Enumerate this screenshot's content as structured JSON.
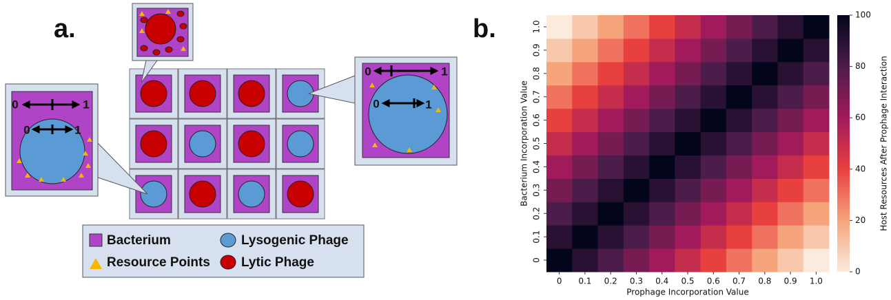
{
  "diagram": {
    "panel_a_label": "a.",
    "panel_b_label": "b.",
    "legend": [
      "Bacterium",
      "Lysogenic Phage",
      "Resource Points",
      "Lytic Phage"
    ],
    "zoom_left": {
      "outer": [
        "0",
        "1"
      ],
      "inner": [
        "0",
        "1"
      ]
    },
    "zoom_right": {
      "outer": [
        "0",
        "1"
      ],
      "inner": [
        "0",
        "1"
      ]
    }
  },
  "chart_data": {
    "type": "heatmap",
    "x_label": "Prophage Incorporation Value",
    "y_label": "Bacterium Incorporation Value",
    "colorbar_label": "Host Resources After Prophage Interaction",
    "x_categories": [
      "0",
      "0.1",
      "0.2",
      "0.3",
      "0.4",
      "0.5",
      "0.6",
      "0.7",
      "0.8",
      "0.9",
      "1.0"
    ],
    "y_categories": [
      "0",
      "0.1",
      "0.2",
      "0.3",
      "0.4",
      "0.5",
      "0.6",
      "0.7",
      "0.8",
      "0.9",
      "1.0"
    ],
    "values": [
      [
        100,
        90,
        80,
        70,
        60,
        50,
        40,
        30,
        20,
        10,
        0
      ],
      [
        90,
        100,
        90,
        80,
        70,
        60,
        50,
        40,
        30,
        20,
        10
      ],
      [
        80,
        90,
        100,
        90,
        80,
        70,
        60,
        50,
        40,
        30,
        20
      ],
      [
        70,
        80,
        90,
        100,
        90,
        80,
        70,
        60,
        50,
        40,
        30
      ],
      [
        60,
        70,
        80,
        90,
        100,
        90,
        80,
        70,
        60,
        50,
        40
      ],
      [
        50,
        60,
        70,
        80,
        90,
        100,
        90,
        80,
        70,
        60,
        50
      ],
      [
        40,
        50,
        60,
        70,
        80,
        90,
        100,
        90,
        80,
        70,
        60
      ],
      [
        30,
        40,
        50,
        60,
        70,
        80,
        90,
        100,
        90,
        80,
        70
      ],
      [
        20,
        30,
        40,
        50,
        60,
        70,
        80,
        90,
        100,
        90,
        80
      ],
      [
        10,
        20,
        30,
        40,
        50,
        60,
        70,
        80,
        90,
        100,
        90
      ],
      [
        0,
        10,
        20,
        30,
        40,
        50,
        60,
        70,
        80,
        90,
        100
      ]
    ],
    "clim": [
      0,
      100
    ],
    "cticks": [
      0,
      20,
      40,
      60,
      80,
      100
    ],
    "colorscale": [
      "#faebdd",
      "#f6a47c",
      "#e83f3f",
      "#a11a5b",
      "#4c1d4b",
      "#03051a"
    ]
  }
}
